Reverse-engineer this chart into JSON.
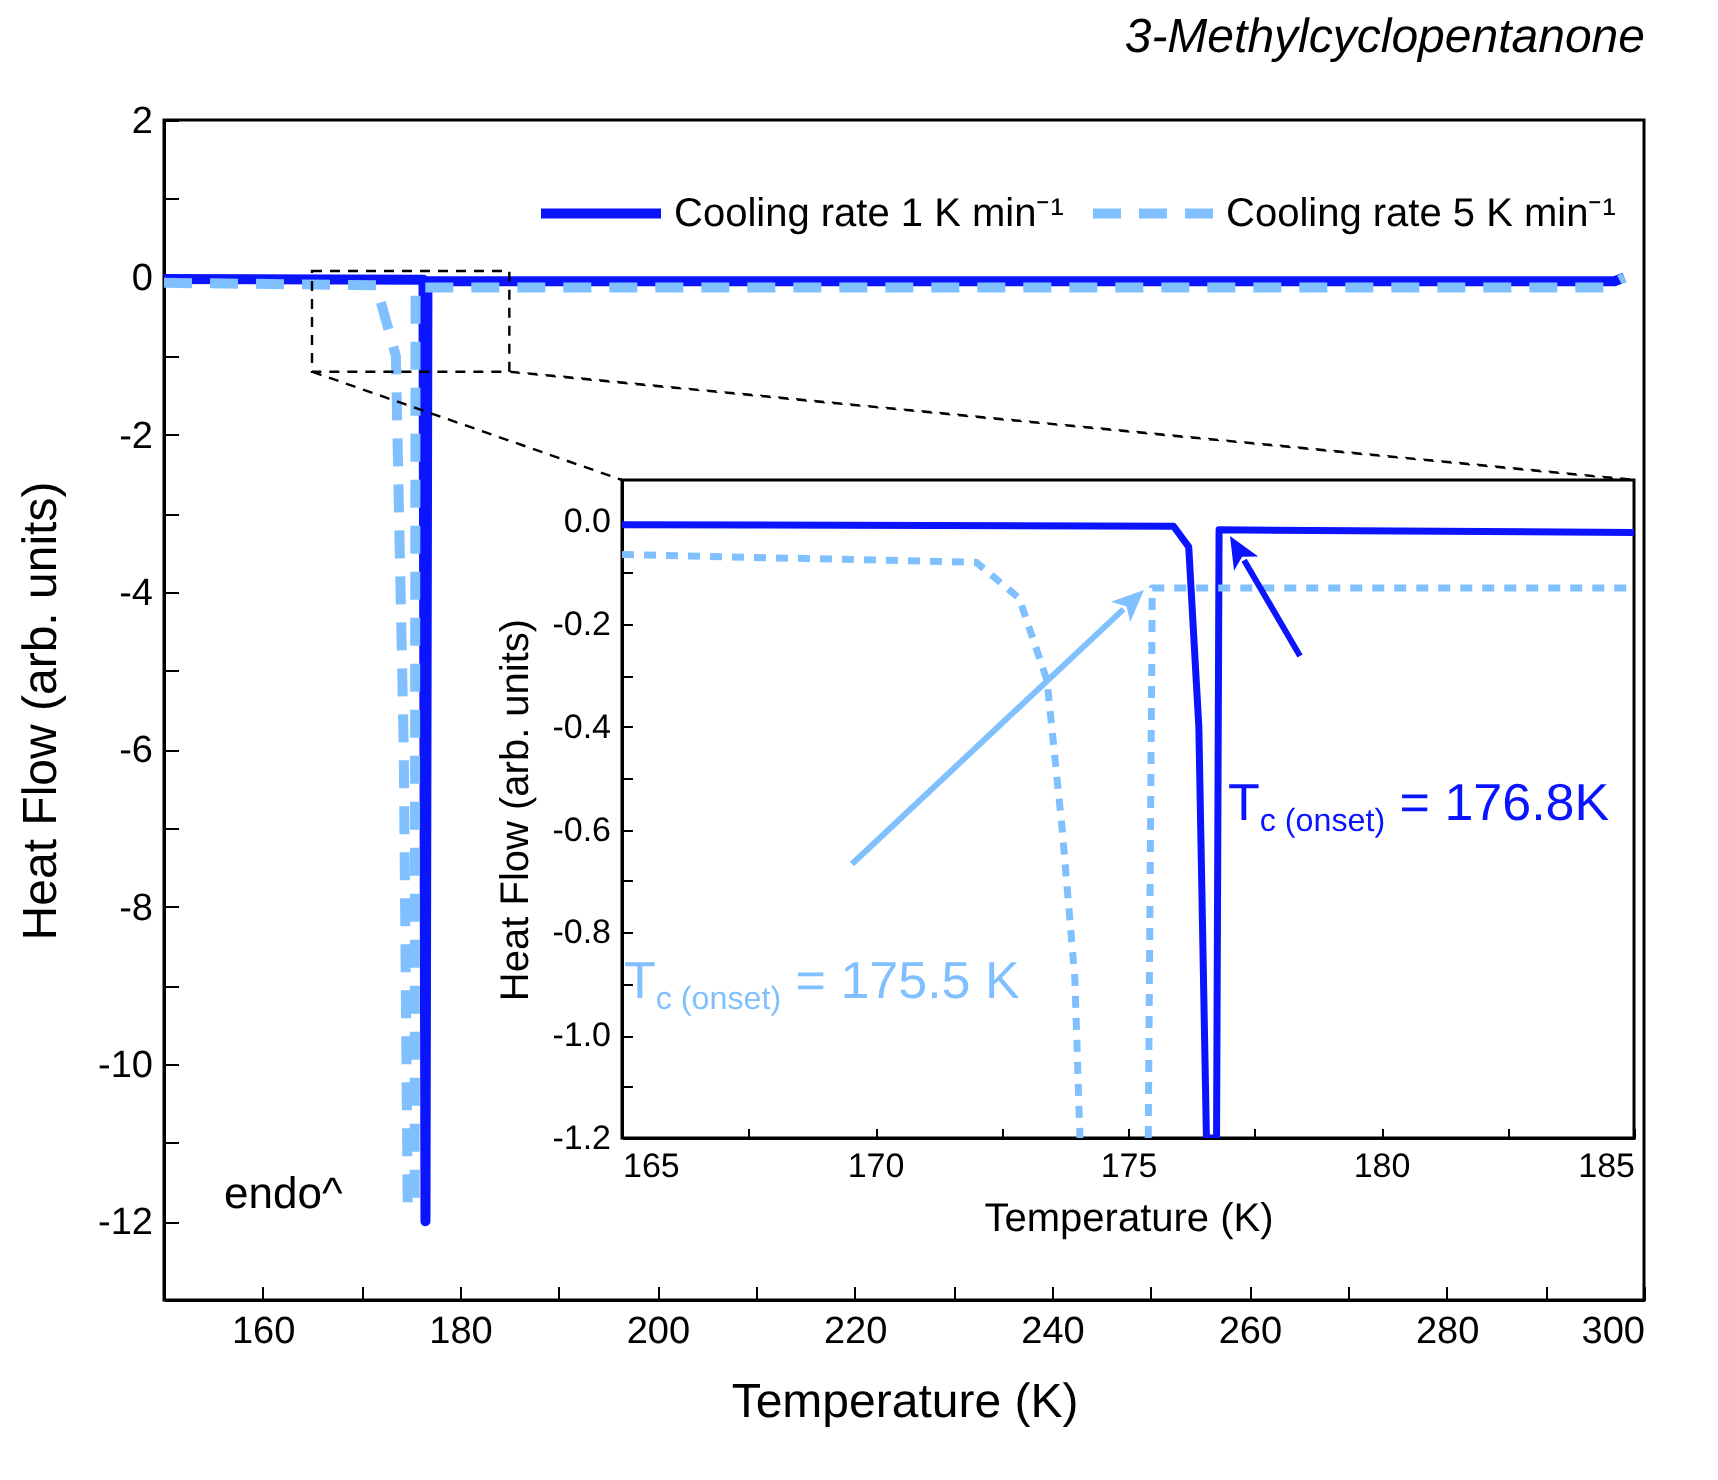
{
  "chart_data": [
    {
      "type": "line",
      "title": "3-Methylcyclopentanone",
      "xlabel": "Temperature (K)",
      "ylabel": "Heat Flow (arb. units)",
      "xlim": [
        150,
        300
      ],
      "ylim": [
        -13,
        2
      ],
      "xticks": [
        {
          "value": 150,
          "label": null
        },
        160,
        {
          "value": 170,
          "label": null
        },
        180,
        {
          "value": 190,
          "label": null
        },
        200,
        {
          "value": 210,
          "label": null
        },
        220,
        {
          "value": 230,
          "label": null
        },
        240,
        {
          "value": 250,
          "label": null
        },
        260,
        {
          "value": 270,
          "label": null
        },
        280,
        {
          "value": 290,
          "label": null
        },
        300
      ],
      "yticks": [
        {
          "value": -13,
          "label": null
        },
        -12,
        {
          "value": -11,
          "label": null
        },
        -10,
        {
          "value": -9,
          "label": null
        },
        -8,
        {
          "value": -7,
          "label": null
        },
        -6,
        {
          "value": -5,
          "label": null
        },
        -4,
        {
          "value": -3,
          "label": null
        },
        -2,
        {
          "value": -1,
          "label": null
        },
        0,
        {
          "value": 1,
          "label": null
        },
        2
      ],
      "legend": "top right",
      "annotations": [
        "endo^"
      ],
      "series": [
        {
          "name": "Cooling rate 1 K min⁻¹",
          "color": "#0a14ff",
          "line_style": "solid",
          "x": [
            150,
            176.3,
            176.5,
            176.7,
            297,
            298
          ],
          "values": [
            -0.02,
            -0.03,
            -12,
            -0.05,
            -0.05,
            0.0
          ]
        },
        {
          "name": "Cooling rate 5 K min⁻¹",
          "color": "#80c0ff",
          "line_style": "dashed",
          "x": [
            150,
            171.5,
            173.5,
            174.3,
            174.7,
            175.4,
            175.5,
            296,
            298
          ],
          "values": [
            -0.07,
            -0.1,
            -1,
            -6,
            -11.8,
            -11.8,
            -0.13,
            -0.13,
            0.0
          ]
        }
      ]
    },
    {
      "type": "line",
      "xlabel": "Temperature (K)",
      "ylabel": "Heat Flow (arb. units)",
      "xlim": [
        165,
        185
      ],
      "ylim": [
        -1.2,
        0.08
      ],
      "xticks": [
        165,
        {
          "value": 167.5,
          "label": null
        },
        170,
        {
          "value": 172.5,
          "label": null
        },
        175,
        {
          "value": 177.5,
          "label": null
        },
        180,
        {
          "value": 182.5,
          "label": null
        },
        185
      ],
      "yticks": [
        {
          "value": -1.2,
          "label": "-1.2"
        },
        {
          "value": -1.1,
          "label": null
        },
        {
          "value": -1.0,
          "label": "-1.0"
        },
        {
          "value": -0.9,
          "label": null
        },
        {
          "value": -0.8,
          "label": "-0.8"
        },
        {
          "value": -0.7,
          "label": null
        },
        {
          "value": -0.6,
          "label": "-0.6"
        },
        {
          "value": -0.5,
          "label": null
        },
        {
          "value": -0.4,
          "label": "-0.4"
        },
        {
          "value": -0.3,
          "label": null
        },
        {
          "value": -0.2,
          "label": "-0.2"
        },
        {
          "value": -0.1,
          "label": null
        },
        {
          "value": 0,
          "label": "0.0"
        }
      ],
      "annotations": [
        "T$_{c (onset)}$ = 176.8K",
        "T$_{c (onset)}$ = 175.5 K"
      ],
      "series": [
        {
          "color": "#0a14ff",
          "line_style": "solid",
          "x": [
            165,
            175.9,
            176.2,
            176.4,
            176.55,
            176.75,
            176.8,
            185
          ],
          "values": [
            -0.007,
            -0.01,
            -0.05,
            -0.4,
            -1.2,
            -1.2,
            -0.017,
            -0.022
          ]
        },
        {
          "color": "#80c0ff",
          "line_style": "dashed",
          "x": [
            165,
            172.0,
            172.85,
            173.4,
            173.7,
            173.95,
            174.05,
            174.5,
            175.4,
            175.48,
            185
          ],
          "values": [
            -0.065,
            -0.08,
            -0.15,
            -0.31,
            -0.6,
            -0.89,
            -1.2,
            null,
            -1.2,
            -0.13,
            -0.13
          ]
        }
      ]
    }
  ]
}
